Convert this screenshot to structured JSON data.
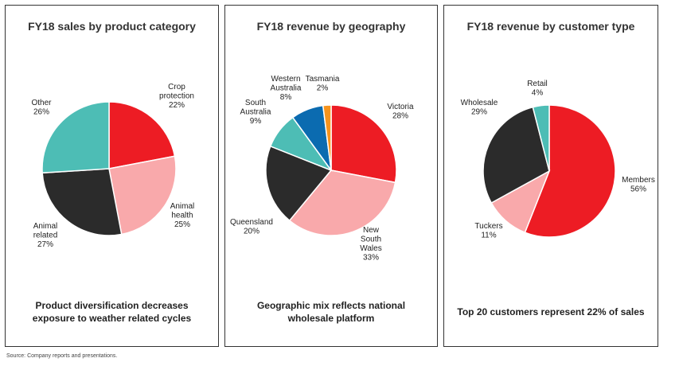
{
  "source_note": "Source: Company reports and presentations.",
  "chart_data": [
    {
      "type": "pie",
      "title": "FY18 sales by product category",
      "caption": [
        "Product diversification decreases",
        "exposure to weather related cycles"
      ],
      "slices": [
        {
          "label": [
            "Crop",
            "protection",
            "22%"
          ],
          "value": 22,
          "color": "#ED1C24"
        },
        {
          "label": [
            "Animal",
            "health",
            "25%"
          ],
          "value": 25,
          "color": "#F9A9AB"
        },
        {
          "label": [
            "Animal",
            "related",
            "27%"
          ],
          "value": 27,
          "color": "#2B2B2B"
        },
        {
          "label": [
            "Other",
            "26%"
          ],
          "value": 26,
          "color": "#4DBDB5"
        }
      ]
    },
    {
      "type": "pie",
      "title": "FY18 revenue by geography",
      "caption": [
        "Geographic mix reflects national",
        "wholesale platform"
      ],
      "slices": [
        {
          "label": [
            "Victoria",
            "28%"
          ],
          "value": 28,
          "color": "#ED1C24"
        },
        {
          "label": [
            "New",
            "South",
            "Wales",
            "33%"
          ],
          "value": 33,
          "color": "#F9A9AB"
        },
        {
          "label": [
            "Queensland",
            "20%"
          ],
          "value": 20,
          "color": "#2B2B2B"
        },
        {
          "label": [
            "South",
            "Australia",
            "9%"
          ],
          "value": 9,
          "color": "#4DBDB5"
        },
        {
          "label": [
            "Western",
            "Australia",
            "8%"
          ],
          "value": 8,
          "color": "#0B6BB0"
        },
        {
          "label": [
            "Tasmania",
            "2%"
          ],
          "value": 2,
          "color": "#F7941D"
        }
      ]
    },
    {
      "type": "pie",
      "title": "FY18 revenue by customer type",
      "caption": [
        "Top 20 customers represent 22% of sales"
      ],
      "slices": [
        {
          "label": [
            "Members",
            "56%"
          ],
          "value": 56,
          "color": "#ED1C24"
        },
        {
          "label": [
            "Tuckers",
            "11%"
          ],
          "value": 11,
          "color": "#F9A9AB"
        },
        {
          "label": [
            "Wholesale",
            "29%"
          ],
          "value": 29,
          "color": "#2B2B2B"
        },
        {
          "label": [
            "Retail",
            "4%"
          ],
          "value": 4,
          "color": "#4DBDB5"
        }
      ]
    }
  ]
}
